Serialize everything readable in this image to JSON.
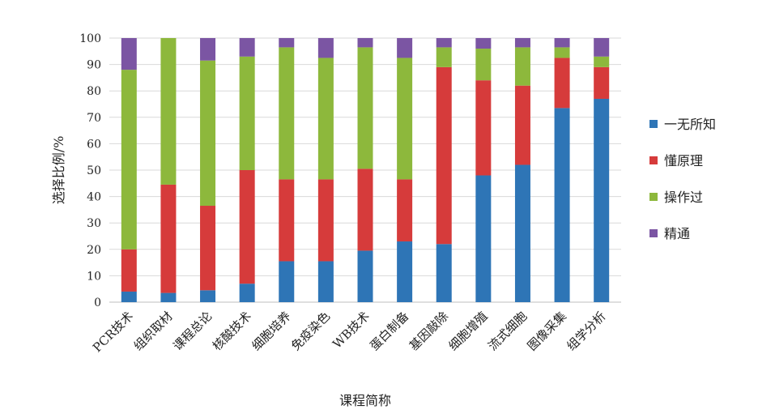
{
  "chart_data": {
    "type": "bar",
    "stacked": true,
    "title": "",
    "xlabel": "课程简称",
    "ylabel": "选择比例/%",
    "ylim": [
      0,
      100
    ],
    "yticks": [
      0,
      10,
      20,
      30,
      40,
      50,
      60,
      70,
      80,
      90,
      100
    ],
    "grid": true,
    "legend_position": "right",
    "categories": [
      "PCR技术",
      "组织取材",
      "课程总论",
      "核酸技术",
      "细胞培养",
      "免疫染色",
      "WB技术",
      "蛋白制备",
      "基因敲除",
      "细胞增殖",
      "流式细胞",
      "图像采集",
      "组学分析"
    ],
    "series": [
      {
        "name": "一无所知",
        "color": "#2e75b6",
        "values": [
          4,
          3.5,
          4.5,
          7,
          15.5,
          15.5,
          19.5,
          23,
          22,
          48,
          52,
          73.5,
          77
        ]
      },
      {
        "name": "懂原理",
        "color": "#d63b3b",
        "values": [
          16,
          41,
          32,
          43,
          31,
          31,
          31,
          23.5,
          67,
          36,
          30,
          19,
          12
        ]
      },
      {
        "name": "操作过",
        "color": "#8db83c",
        "values": [
          68,
          55.5,
          55,
          43,
          50,
          46,
          46,
          46,
          7.5,
          12,
          14.5,
          4,
          4
        ]
      },
      {
        "name": "精通",
        "color": "#7b55a3",
        "values": [
          12,
          0,
          8.5,
          7,
          3.5,
          7.5,
          3.5,
          7.5,
          3.5,
          4,
          3.5,
          3.5,
          7
        ]
      }
    ]
  }
}
